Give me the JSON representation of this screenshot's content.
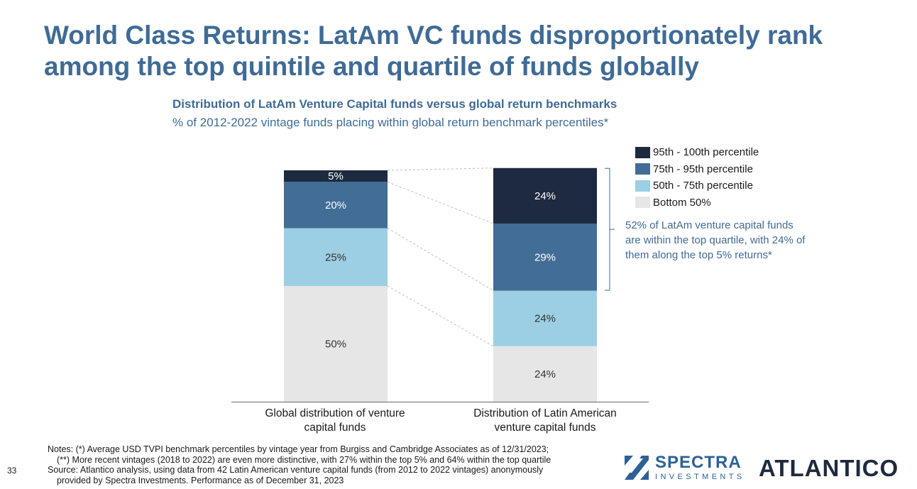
{
  "page": {
    "title": "World Class Returns: LatAm VC funds disproportionately rank among the top quintile and quartile of funds globally",
    "page_number": "33"
  },
  "chart_data": {
    "type": "bar",
    "stacked": true,
    "orientation": "vertical",
    "title": "Distribution of LatAm Venture Capital funds versus global return benchmarks",
    "subtitle": "% of 2012-2022 vintage funds placing within global return benchmark percentiles*",
    "categories": [
      "Global distribution of venture capital funds",
      "Distribution of Latin American venture capital funds"
    ],
    "series": [
      {
        "name": "Bottom 50%",
        "values": [
          50,
          24
        ],
        "labels": [
          "50%",
          "24%"
        ],
        "color": "#e6e6e6"
      },
      {
        "name": "50th - 75th percentile",
        "values": [
          25,
          24
        ],
        "labels": [
          "25%",
          "24%"
        ],
        "color": "#9ccfe3"
      },
      {
        "name": "75th - 95th percentile",
        "values": [
          20,
          29
        ],
        "labels": [
          "20%",
          "29%"
        ],
        "color": "#416d97"
      },
      {
        "name": "95th - 100th percentile",
        "values": [
          5,
          24
        ],
        "labels": [
          "5%",
          "24%"
        ],
        "color": "#1d2a40"
      }
    ],
    "legend_order": [
      "95th - 100th percentile",
      "75th - 95th percentile",
      "50th - 75th percentile",
      "Bottom 50%"
    ],
    "ylim": [
      0,
      100
    ],
    "xlabel": "",
    "ylabel": "",
    "annotation": "52% of LatAm venture capital funds are within the top quartile, with 24% of them along the top 5% returns*"
  },
  "notes": [
    "Notes: (*) Average USD TVPI benchmark percentiles by vintage year from Burgiss and Cambridge Associates as of 12/31/2023;",
    "(**) More recent vintages (2018 to 2022) are even more distinctive, with 27% within the top 5% and 64% within the top quartile",
    "Source: Atlantico analysis, using data from 42 Latin American venture capital funds (from 2012 to 2022 vintages) anonymously",
    "provided by Spectra Investments. Performance as of December 31, 2023"
  ],
  "logos": {
    "spectra_name": "SPECTRA",
    "spectra_sub": "INVESTMENTS",
    "atlantico": "ATLANTICO"
  },
  "colors": {
    "title": "#3f6b96",
    "logo_spectra": "#2d6196",
    "logo_atlantico": "#1e2a3e"
  }
}
